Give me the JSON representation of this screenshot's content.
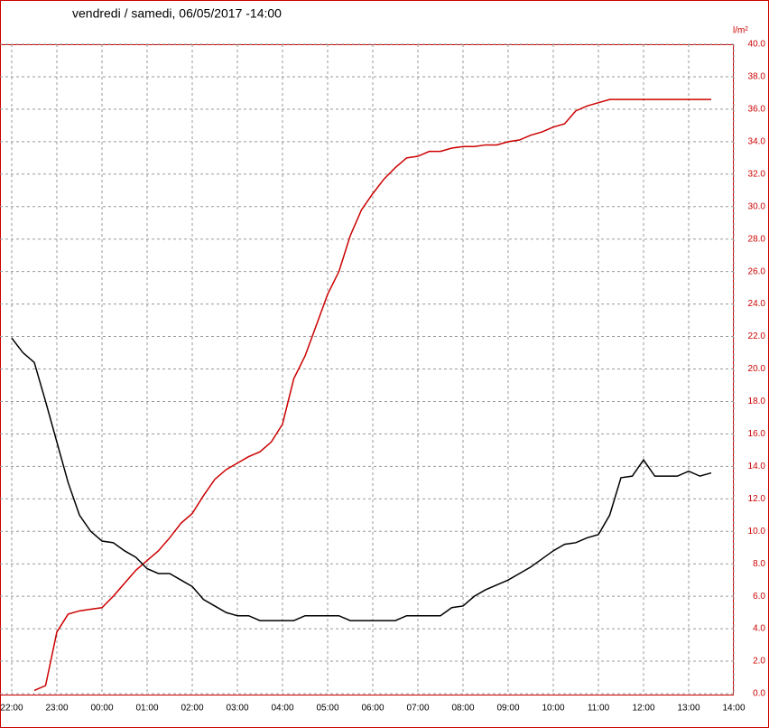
{
  "chart_data": {
    "type": "line",
    "title": "vendredi / samedi, 06/05/2017  -14:00",
    "y_label": "l/m²",
    "x": [
      "22:00",
      "22:15",
      "22:30",
      "22:45",
      "23:00",
      "23:15",
      "23:30",
      "23:45",
      "00:00",
      "00:15",
      "00:30",
      "00:45",
      "01:00",
      "01:15",
      "01:30",
      "01:45",
      "02:00",
      "02:15",
      "02:30",
      "02:45",
      "03:00",
      "03:15",
      "03:30",
      "03:45",
      "04:00",
      "04:15",
      "04:30",
      "04:45",
      "05:00",
      "05:15",
      "05:30",
      "05:45",
      "06:00",
      "06:15",
      "06:30",
      "06:45",
      "07:00",
      "07:15",
      "07:30",
      "07:45",
      "08:00",
      "08:15",
      "08:30",
      "08:45",
      "09:00",
      "09:15",
      "09:30",
      "09:45",
      "10:00",
      "10:15",
      "10:30",
      "10:45",
      "11:00",
      "11:15",
      "11:30",
      "11:45",
      "12:00",
      "12:15",
      "12:30",
      "12:45",
      "13:00",
      "13:15",
      "13:30"
    ],
    "series": [
      {
        "color": "#cc0000",
        "values": [
          null,
          null,
          0.2,
          0.5,
          3.8,
          4.9,
          5.1,
          5.2,
          5.3,
          6.0,
          6.8,
          7.6,
          8.2,
          8.8,
          9.6,
          10.5,
          11.1,
          12.2,
          13.2,
          13.8,
          14.2,
          14.6,
          14.9,
          15.5,
          16.6,
          19.4,
          20.8,
          22.7,
          24.6,
          26.0,
          28.2,
          29.8,
          30.8,
          31.7,
          32.4,
          33.0,
          33.1,
          33.4,
          33.4,
          33.6,
          33.7,
          33.7,
          33.8,
          33.8,
          34.0,
          34.1,
          34.4,
          34.6,
          34.9,
          35.1,
          35.9,
          36.2,
          36.4,
          36.6,
          36.6,
          36.6,
          36.6,
          36.6,
          36.6,
          36.6,
          36.6,
          36.6,
          36.6
        ]
      },
      {
        "color": "#000000",
        "values": [
          21.9,
          21.0,
          20.4,
          18.0,
          15.5,
          13.0,
          11.0,
          10.0,
          9.4,
          9.3,
          8.8,
          8.4,
          7.7,
          7.4,
          7.4,
          7.0,
          6.6,
          5.8,
          5.4,
          5.0,
          4.8,
          4.8,
          4.5,
          4.5,
          4.5,
          4.5,
          4.8,
          4.8,
          4.8,
          4.8,
          4.5,
          4.5,
          4.5,
          4.5,
          4.5,
          4.8,
          4.8,
          4.8,
          4.8,
          5.3,
          5.4,
          6.0,
          6.4,
          6.7,
          7.0,
          7.4,
          7.8,
          8.3,
          8.8,
          9.2,
          9.3,
          9.6,
          9.8,
          11.0,
          13.3,
          13.4,
          14.4,
          13.4,
          13.4,
          13.4,
          13.7,
          13.4,
          13.6
        ]
      }
    ],
    "xticks": [
      "22:00",
      "23:00",
      "00:00",
      "01:00",
      "02:00",
      "03:00",
      "04:00",
      "05:00",
      "06:00",
      "07:00",
      "08:00",
      "09:00",
      "10:00",
      "11:00",
      "12:00",
      "13:00",
      "14:00"
    ],
    "ylim": [
      0,
      40
    ],
    "yticks": [
      {
        "value": 0,
        "label": "0.0"
      },
      {
        "value": 2,
        "label": "2.0"
      },
      {
        "value": 4,
        "label": "4.0"
      },
      {
        "value": 6,
        "label": "6.0"
      },
      {
        "value": 8,
        "label": "8.0"
      },
      {
        "value": 10,
        "label": "10.0"
      },
      {
        "value": 12,
        "label": "12.0"
      },
      {
        "value": 14,
        "label": "14.0"
      },
      {
        "value": 16,
        "label": "16.0"
      },
      {
        "value": 18,
        "label": "18.0"
      },
      {
        "value": 20,
        "label": "20.0"
      },
      {
        "value": 22,
        "label": "22.0"
      },
      {
        "value": 24,
        "label": "24.0"
      },
      {
        "value": 26,
        "label": "26.0"
      },
      {
        "value": 28,
        "label": "28.0"
      },
      {
        "value": 30,
        "label": "30.0"
      },
      {
        "value": 32,
        "label": "32.0"
      },
      {
        "value": 34,
        "label": "34.0"
      },
      {
        "value": 36,
        "label": "36.0"
      },
      {
        "value": 38,
        "label": "38.0"
      },
      {
        "value": 40,
        "label": "40.0"
      }
    ],
    "grid": true
  }
}
